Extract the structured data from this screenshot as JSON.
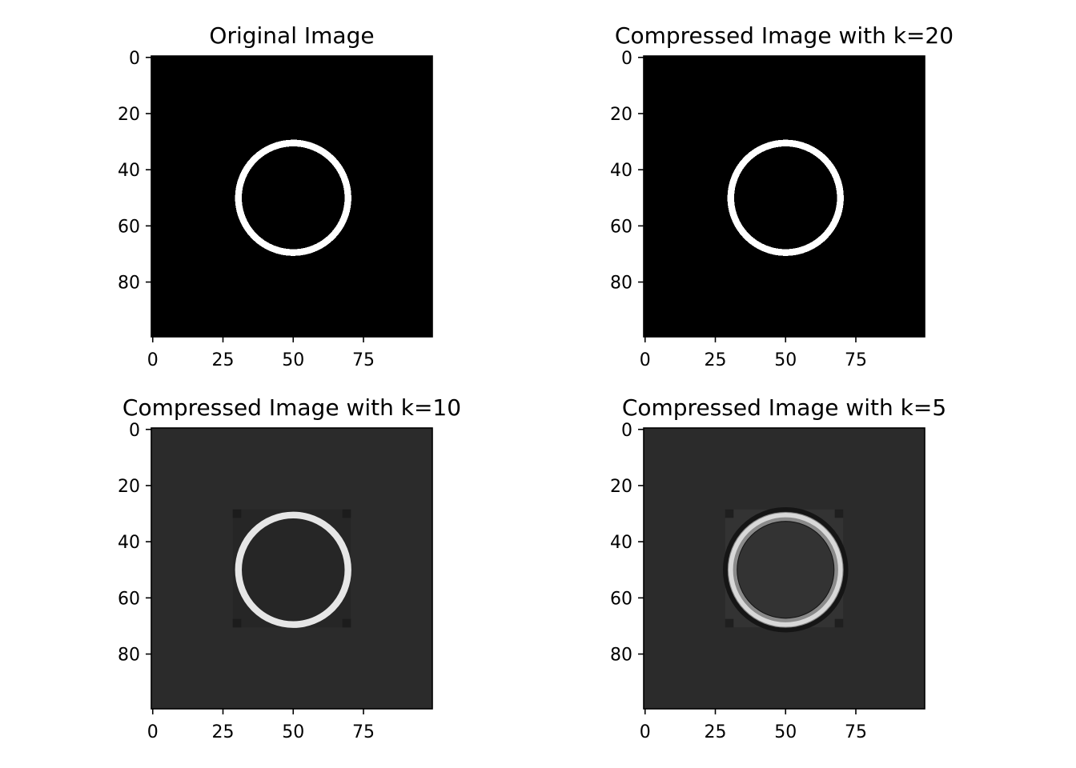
{
  "chart_data": [
    {
      "type": "heatmap",
      "title": "Original Image",
      "image_size": [
        100,
        100
      ],
      "xlim": [
        0,
        99
      ],
      "ylim": [
        99,
        0
      ],
      "xticks": [
        0,
        25,
        50,
        75
      ],
      "yticks": [
        0,
        20,
        40,
        60,
        80
      ],
      "colormap": "gray",
      "background_color": "#000000",
      "content": {
        "shape": "ring",
        "center": [
          50,
          50
        ],
        "radius": 20,
        "ring_color": "#ffffff",
        "inner_color": "#000000",
        "artifact_box": []
      }
    },
    {
      "type": "heatmap",
      "title": "Compressed Image with k=20",
      "image_size": [
        100,
        100
      ],
      "xlim": [
        0,
        99
      ],
      "ylim": [
        99,
        0
      ],
      "xticks": [
        0,
        25,
        50,
        75
      ],
      "yticks": [
        0,
        20,
        40,
        60,
        80
      ],
      "colormap": "gray",
      "background_color": "#000000",
      "content": {
        "shape": "ring",
        "center": [
          50,
          50
        ],
        "radius": 20,
        "ring_color": "#ffffff",
        "inner_color": "#000000",
        "artifact_box": []
      }
    },
    {
      "type": "heatmap",
      "title": "Compressed Image with k=10",
      "image_size": [
        100,
        100
      ],
      "xlim": [
        0,
        99
      ],
      "ylim": [
        99,
        0
      ],
      "xticks": [
        0,
        25,
        50,
        75
      ],
      "yticks": [
        0,
        20,
        40,
        60,
        80
      ],
      "colormap": "gray",
      "background_color": "#2b2b2b",
      "content": {
        "shape": "ring",
        "center": [
          50,
          50
        ],
        "radius": 20,
        "ring_color": "#e6e6e6",
        "inner_color": "#262626",
        "artifact_box": [
          29,
          29,
          71,
          71
        ]
      }
    },
    {
      "type": "heatmap",
      "title": "Compressed Image with k=5",
      "image_size": [
        100,
        100
      ],
      "xlim": [
        0,
        99
      ],
      "ylim": [
        99,
        0
      ],
      "xticks": [
        0,
        25,
        50,
        75
      ],
      "yticks": [
        0,
        20,
        40,
        60,
        80
      ],
      "colormap": "gray",
      "background_color": "#2b2b2b",
      "content": {
        "shape": "ring",
        "center": [
          50,
          50
        ],
        "radius": 20,
        "ring_color": "#d8d8d8",
        "inner_color": "#333333",
        "artifact_box": [
          29,
          29,
          71,
          71
        ]
      }
    }
  ]
}
